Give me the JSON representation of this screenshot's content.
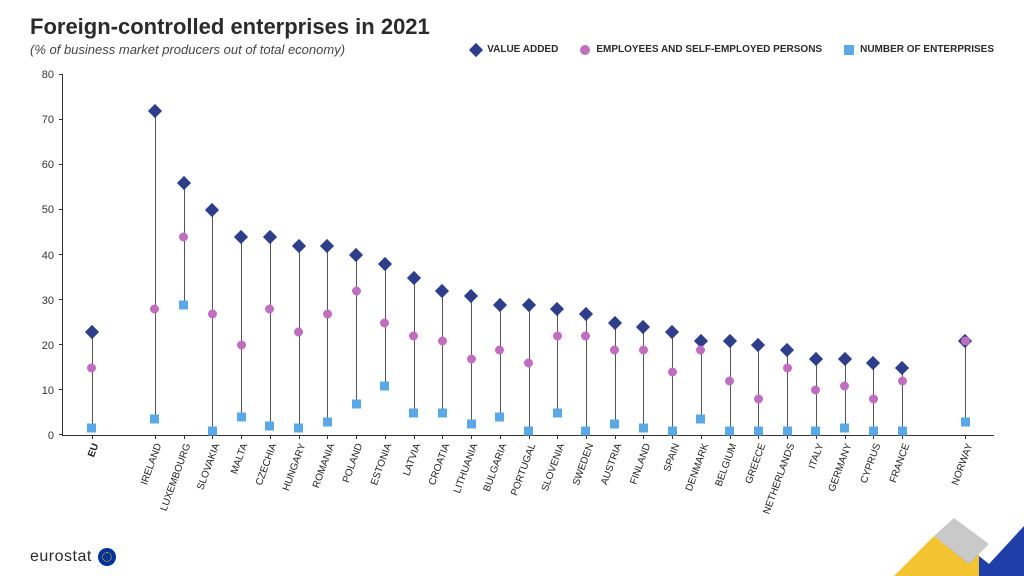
{
  "title": "Foreign-controlled enterprises in 2021",
  "subtitle": "(% of business market producers out of total economy)",
  "legend": {
    "value_added": "VALUE ADDED",
    "employees": "EMPLOYEES AND SELF-EMPLOYED PERSONS",
    "enterprises": "NUMBER OF ENTERPRISES"
  },
  "colors": {
    "value_added": "#2e3e8a",
    "employees": "#c06fc0",
    "enterprises": "#5aa9e6",
    "stem": "#555555",
    "axis": "#333333",
    "bg": "#ffffff",
    "deco_yellow": "#f4c430",
    "deco_blue": "#1f3ea8",
    "deco_grey": "#c9c9c9"
  },
  "chart": {
    "type": "lollipop-range",
    "ylim": [
      0,
      80
    ],
    "ytick_step": 10,
    "y_ticks": [
      0,
      10,
      20,
      30,
      40,
      50,
      60,
      70,
      80
    ],
    "label_fontsize": 10,
    "marker_size": 10,
    "gap_after_index": 0,
    "gap_before_last": true,
    "countries": [
      {
        "name": "EU",
        "bold": true,
        "value_added": 23,
        "employees": 15,
        "enterprises": 1.5
      },
      {
        "name": "IRELAND",
        "value_added": 72,
        "employees": 28,
        "enterprises": 3.5
      },
      {
        "name": "LUXEMBOURG",
        "value_added": 56,
        "employees": 44,
        "enterprises": 29
      },
      {
        "name": "SLOVAKIA",
        "value_added": 50,
        "employees": 27,
        "enterprises": 1
      },
      {
        "name": "MALTA",
        "value_added": 44,
        "employees": 20,
        "enterprises": 4
      },
      {
        "name": "CZECHIA",
        "value_added": 44,
        "employees": 28,
        "enterprises": 2
      },
      {
        "name": "HUNGARY",
        "value_added": 42,
        "employees": 23,
        "enterprises": 1.5
      },
      {
        "name": "ROMANIA",
        "value_added": 42,
        "employees": 27,
        "enterprises": 3
      },
      {
        "name": "POLAND",
        "value_added": 40,
        "employees": 32,
        "enterprises": 7
      },
      {
        "name": "ESTONIA",
        "value_added": 38,
        "employees": 25,
        "enterprises": 11
      },
      {
        "name": "LATVIA",
        "value_added": 35,
        "employees": 22,
        "enterprises": 5
      },
      {
        "name": "CROATIA",
        "value_added": 32,
        "employees": 21,
        "enterprises": 5
      },
      {
        "name": "LITHUANIA",
        "value_added": 31,
        "employees": 17,
        "enterprises": 2.5
      },
      {
        "name": "BULGARIA",
        "value_added": 29,
        "employees": 19,
        "enterprises": 4
      },
      {
        "name": "PORTUGAL",
        "value_added": 29,
        "employees": 16,
        "enterprises": 1
      },
      {
        "name": "SLOVENIA",
        "value_added": 28,
        "employees": 22,
        "enterprises": 5
      },
      {
        "name": "SWEDEN",
        "value_added": 27,
        "employees": 22,
        "enterprises": 1
      },
      {
        "name": "AUSTRIA",
        "value_added": 25,
        "employees": 19,
        "enterprises": 2.5
      },
      {
        "name": "FINLAND",
        "value_added": 24,
        "employees": 19,
        "enterprises": 1.5
      },
      {
        "name": "SPAIN",
        "value_added": 23,
        "employees": 14,
        "enterprises": 1
      },
      {
        "name": "DENMARK",
        "value_added": 21,
        "employees": 19,
        "enterprises": 3.5
      },
      {
        "name": "BELGIUM",
        "value_added": 21,
        "employees": 12,
        "enterprises": 1
      },
      {
        "name": "GREECE",
        "value_added": 20,
        "employees": 8,
        "enterprises": 1
      },
      {
        "name": "NETHERLANDS",
        "value_added": 19,
        "employees": 15,
        "enterprises": 1
      },
      {
        "name": "ITALY",
        "value_added": 17,
        "employees": 10,
        "enterprises": 1
      },
      {
        "name": "GERMANY",
        "value_added": 17,
        "employees": 11,
        "enterprises": 1.5
      },
      {
        "name": "CYPRUS",
        "value_added": 16,
        "employees": 8,
        "enterprises": 1
      },
      {
        "name": "FRANCE",
        "value_added": 15,
        "employees": 12,
        "enterprises": 1
      },
      {
        "name": "NORWAY",
        "value_added": 21,
        "employees": 21,
        "enterprises": 3
      }
    ]
  },
  "footer": {
    "brand": "eurostat"
  }
}
